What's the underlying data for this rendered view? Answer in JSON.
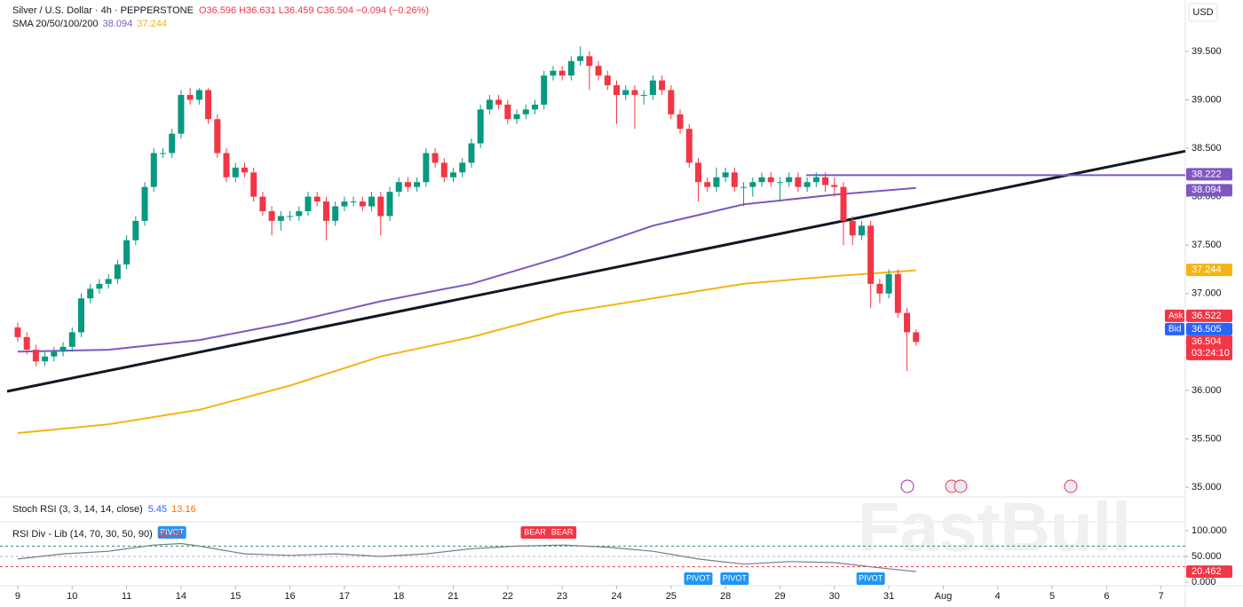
{
  "chart_data": {
    "type": "candlestick",
    "header": {
      "symbol": "Silver / U.S. Dollar · 4h · PEPPERSTONE",
      "open": "O36.596",
      "high": "H36.631",
      "low": "L36.459",
      "close": "C36.504",
      "change": "−0.094 (−0.26%)"
    },
    "sma_label": "SMA 20/50/100/200",
    "currency": "USD",
    "watermark": "FastBull",
    "up_color": "#089981",
    "down_color": "#f23645",
    "xlim": [
      -1.17,
      128.67
    ],
    "ylim": [
      34.9,
      40.03
    ],
    "xticks": [
      {
        "value": 0,
        "label": "9"
      },
      {
        "value": 6,
        "label": "10"
      },
      {
        "value": 12,
        "label": "11"
      },
      {
        "value": 18,
        "label": "14"
      },
      {
        "value": 24,
        "label": "15"
      },
      {
        "value": 30,
        "label": "16"
      },
      {
        "value": 36,
        "label": "17"
      },
      {
        "value": 42,
        "label": "18"
      },
      {
        "value": 48,
        "label": "21"
      },
      {
        "value": 54,
        "label": "22"
      },
      {
        "value": 60,
        "label": "23"
      },
      {
        "value": 66,
        "label": "24"
      },
      {
        "value": 72,
        "label": "25"
      },
      {
        "value": 78,
        "label": "28"
      },
      {
        "value": 84,
        "label": "29"
      },
      {
        "value": 90,
        "label": "30"
      },
      {
        "value": 96,
        "label": "31"
      },
      {
        "value": 102,
        "label": "Aug"
      },
      {
        "value": 108,
        "label": "4"
      },
      {
        "value": 114,
        "label": "5"
      },
      {
        "value": 120,
        "label": "6"
      },
      {
        "value": 126,
        "label": "7"
      }
    ],
    "yticks": [
      {
        "value": 35,
        "label": "35.000"
      },
      {
        "value": 35.5,
        "label": "35.500"
      },
      {
        "value": 36,
        "label": "36.000"
      },
      {
        "value": 36.5,
        "label": "36.500"
      },
      {
        "value": 37,
        "label": "37.000"
      },
      {
        "value": 37.5,
        "label": "37.500"
      },
      {
        "value": 38,
        "label": "38.000"
      },
      {
        "value": 38.5,
        "label": "38.500"
      },
      {
        "value": 39,
        "label": "39.000"
      },
      {
        "value": 39.5,
        "label": "39.500"
      }
    ],
    "ohlc": [
      [
        36.65,
        36.7,
        36.5,
        36.55
      ],
      [
        36.55,
        36.6,
        36.37,
        36.42
      ],
      [
        36.42,
        36.47,
        36.25,
        36.3
      ],
      [
        36.3,
        36.4,
        36.25,
        36.35
      ],
      [
        36.35,
        36.45,
        36.3,
        36.4
      ],
      [
        36.4,
        36.5,
        36.35,
        36.45
      ],
      [
        36.45,
        36.65,
        36.4,
        36.6
      ],
      [
        36.6,
        37.0,
        36.55,
        36.95
      ],
      [
        36.95,
        37.1,
        36.9,
        37.05
      ],
      [
        37.05,
        37.15,
        37.0,
        37.1
      ],
      [
        37.1,
        37.2,
        37.05,
        37.15
      ],
      [
        37.15,
        37.35,
        37.1,
        37.3
      ],
      [
        37.3,
        37.6,
        37.25,
        37.55
      ],
      [
        37.55,
        37.8,
        37.5,
        37.75
      ],
      [
        37.75,
        38.15,
        37.7,
        38.1
      ],
      [
        38.1,
        38.5,
        38.05,
        38.45
      ],
      [
        38.45,
        38.5,
        38.4,
        38.45
      ],
      [
        38.45,
        38.7,
        38.4,
        38.65
      ],
      [
        38.65,
        39.1,
        38.6,
        39.05
      ],
      [
        39.05,
        39.12,
        38.95,
        39.0
      ],
      [
        39.0,
        39.12,
        38.95,
        39.1
      ],
      [
        39.1,
        39.12,
        38.75,
        38.8
      ],
      [
        38.8,
        38.85,
        38.4,
        38.45
      ],
      [
        38.45,
        38.5,
        38.15,
        38.2
      ],
      [
        38.2,
        38.35,
        38.15,
        38.3
      ],
      [
        38.3,
        38.35,
        38.2,
        38.25
      ],
      [
        38.25,
        38.3,
        37.95,
        38.0
      ],
      [
        38.0,
        38.05,
        37.8,
        37.85
      ],
      [
        37.85,
        37.9,
        37.6,
        37.75
      ],
      [
        37.75,
        37.85,
        37.65,
        37.8
      ],
      [
        37.8,
        37.85,
        37.75,
        37.8
      ],
      [
        37.8,
        37.9,
        37.75,
        37.85
      ],
      [
        37.85,
        38.05,
        37.8,
        38.0
      ],
      [
        38.0,
        38.05,
        37.9,
        37.95
      ],
      [
        37.95,
        38.0,
        37.55,
        37.75
      ],
      [
        37.75,
        37.95,
        37.7,
        37.9
      ],
      [
        37.9,
        38.0,
        37.85,
        37.95
      ],
      [
        37.95,
        38.0,
        37.9,
        37.95
      ],
      [
        37.95,
        38.0,
        37.85,
        37.9
      ],
      [
        37.9,
        38.05,
        37.85,
        38.0
      ],
      [
        38.0,
        38.05,
        37.6,
        37.8
      ],
      [
        37.8,
        38.1,
        37.75,
        38.05
      ],
      [
        38.05,
        38.2,
        38.0,
        38.15
      ],
      [
        38.15,
        38.2,
        38.05,
        38.1
      ],
      [
        38.1,
        38.2,
        38.05,
        38.15
      ],
      [
        38.15,
        38.5,
        38.1,
        38.45
      ],
      [
        38.45,
        38.5,
        38.3,
        38.35
      ],
      [
        38.35,
        38.4,
        38.15,
        38.2
      ],
      [
        38.2,
        38.3,
        38.15,
        38.25
      ],
      [
        38.25,
        38.4,
        38.2,
        38.35
      ],
      [
        38.35,
        38.6,
        38.3,
        38.55
      ],
      [
        38.55,
        38.95,
        38.5,
        38.9
      ],
      [
        38.9,
        39.05,
        38.85,
        39.0
      ],
      [
        39.0,
        39.05,
        38.9,
        38.95
      ],
      [
        38.95,
        39.0,
        38.75,
        38.8
      ],
      [
        38.8,
        38.9,
        38.75,
        38.85
      ],
      [
        38.85,
        38.95,
        38.8,
        38.9
      ],
      [
        38.9,
        39.0,
        38.85,
        38.95
      ],
      [
        38.95,
        39.3,
        38.9,
        39.25
      ],
      [
        39.25,
        39.35,
        39.2,
        39.3
      ],
      [
        39.3,
        39.35,
        39.2,
        39.25
      ],
      [
        39.25,
        39.45,
        39.2,
        39.4
      ],
      [
        39.4,
        39.55,
        39.35,
        39.45
      ],
      [
        39.45,
        39.5,
        39.1,
        39.35
      ],
      [
        39.35,
        39.4,
        39.2,
        39.25
      ],
      [
        39.25,
        39.3,
        39.1,
        39.15
      ],
      [
        39.15,
        39.2,
        38.75,
        39.05
      ],
      [
        39.05,
        39.15,
        39.0,
        39.1
      ],
      [
        39.1,
        39.15,
        38.7,
        39.05
      ],
      [
        39.05,
        39.1,
        38.95,
        39.05
      ],
      [
        39.05,
        39.25,
        39.0,
        39.2
      ],
      [
        39.2,
        39.25,
        39.05,
        39.1
      ],
      [
        39.1,
        39.15,
        38.8,
        38.85
      ],
      [
        38.85,
        38.9,
        38.65,
        38.7
      ],
      [
        38.7,
        38.75,
        38.3,
        38.35
      ],
      [
        38.35,
        38.4,
        37.95,
        38.15
      ],
      [
        38.15,
        38.2,
        38.05,
        38.1
      ],
      [
        38.1,
        38.3,
        38.05,
        38.2
      ],
      [
        38.2,
        38.3,
        38.15,
        38.25
      ],
      [
        38.25,
        38.3,
        38.05,
        38.1
      ],
      [
        38.1,
        38.15,
        37.9,
        38.1
      ],
      [
        38.1,
        38.2,
        38.0,
        38.15
      ],
      [
        38.15,
        38.25,
        38.1,
        38.2
      ],
      [
        38.2,
        38.25,
        38.1,
        38.15
      ],
      [
        38.15,
        38.2,
        37.95,
        38.15
      ],
      [
        38.15,
        38.25,
        38.1,
        38.2
      ],
      [
        38.2,
        38.25,
        38.05,
        38.1
      ],
      [
        38.1,
        38.2,
        38.05,
        38.15
      ],
      [
        38.15,
        38.25,
        38.1,
        38.2
      ],
      [
        38.2,
        38.25,
        38.05,
        38.12
      ],
      [
        38.12,
        38.2,
        38.0,
        38.1
      ],
      [
        38.1,
        38.15,
        37.5,
        37.75
      ],
      [
        37.75,
        37.8,
        37.5,
        37.6
      ],
      [
        37.6,
        37.75,
        37.55,
        37.7
      ],
      [
        37.7,
        37.75,
        36.85,
        37.1
      ],
      [
        37.1,
        37.15,
        36.9,
        37.0
      ],
      [
        37.0,
        37.25,
        36.95,
        37.2
      ],
      [
        37.2,
        37.25,
        36.75,
        36.8
      ],
      [
        36.8,
        36.85,
        36.2,
        36.6
      ],
      [
        36.6,
        36.63,
        36.46,
        36.5
      ]
    ],
    "series": [
      {
        "color": "#7e57c2",
        "x": [
          0,
          10,
          20,
          30,
          40,
          50,
          60,
          70,
          80,
          90,
          99
        ],
        "values": [
          36.4,
          36.42,
          36.52,
          36.7,
          36.92,
          37.1,
          37.38,
          37.7,
          37.92,
          38.02,
          38.09
        ],
        "last": 38.094
      },
      {
        "color": "#f5b316",
        "x": [
          0,
          10,
          20,
          30,
          40,
          50,
          60,
          70,
          80,
          90,
          99
        ],
        "values": [
          35.56,
          35.65,
          35.8,
          36.05,
          36.35,
          36.55,
          36.8,
          36.95,
          37.1,
          37.18,
          37.24
        ],
        "last": 37.244
      }
    ],
    "trendline": {
      "color": "#131722",
      "x": [
        -1.17,
        128.67
      ],
      "values": [
        35.99,
        38.47
      ]
    },
    "level": {
      "color": "#7e57c2",
      "value": 38.222,
      "x_start": 86.9
    },
    "price_badges": [
      {
        "value": 38.222,
        "color": "#7e57c2"
      },
      {
        "value": 38.094,
        "color": "#7e57c2"
      },
      {
        "value": 37.244,
        "color": "#f5b316"
      }
    ],
    "ask": {
      "label": "Ask",
      "value": 36.522,
      "color": "#f23645"
    },
    "bid": {
      "label": "Bid",
      "value": 36.505,
      "color": "#2962ff"
    },
    "last": {
      "value": 36.504,
      "countdown": "03:24:10",
      "color": "#f23645"
    },
    "stoch": {
      "label": "Stoch RSI (3, 3, 14, 14, close)",
      "k": 5.45,
      "d": 13.16,
      "k_color": "#2962ff",
      "d_color": "#ff6d00"
    },
    "rsi": {
      "label": "RSI Div - Lib (14, 70, 30, 50, 90)",
      "last": 20.46,
      "badge": 20.462,
      "color": "#787b86",
      "ylim": [
        -6.9,
        113.8
      ],
      "yticks": [
        {
          "value": 100,
          "label": "100.000"
        },
        {
          "value": 50,
          "label": "50.000"
        },
        {
          "value": 0,
          "label": "0.000"
        }
      ],
      "levels": [
        {
          "value": 70,
          "color": "#089981"
        },
        {
          "value": 50,
          "color": "#b2b5be"
        },
        {
          "value": 30,
          "color": "#f23645"
        }
      ],
      "x": [
        0,
        5,
        10,
        15,
        18,
        20,
        25,
        30,
        35,
        40,
        45,
        50,
        55,
        60,
        65,
        70,
        75,
        80,
        85,
        90,
        95,
        99
      ],
      "values": [
        45,
        55,
        60,
        72,
        75,
        70,
        55,
        52,
        55,
        50,
        55,
        65,
        70,
        72,
        68,
        60,
        45,
        35,
        40,
        38,
        28,
        20.46
      ],
      "annotations": [
        {
          "text": "PIVOT",
          "x": 17,
          "side": "top",
          "color": "#2196f3"
        },
        {
          "text": "BEAR",
          "x": 57,
          "side": "top",
          "color": "#f23645"
        },
        {
          "text": "BEAR",
          "x": 60,
          "side": "top",
          "color": "#f23645"
        },
        {
          "text": "PIVOT",
          "x": 75,
          "side": "bottom",
          "color": "#2196f3"
        },
        {
          "text": "PIVOT",
          "x": 79,
          "side": "bottom",
          "color": "#2196f3"
        },
        {
          "text": "PIVOT",
          "x": 94,
          "side": "bottom",
          "color": "#2196f3"
        }
      ]
    }
  }
}
